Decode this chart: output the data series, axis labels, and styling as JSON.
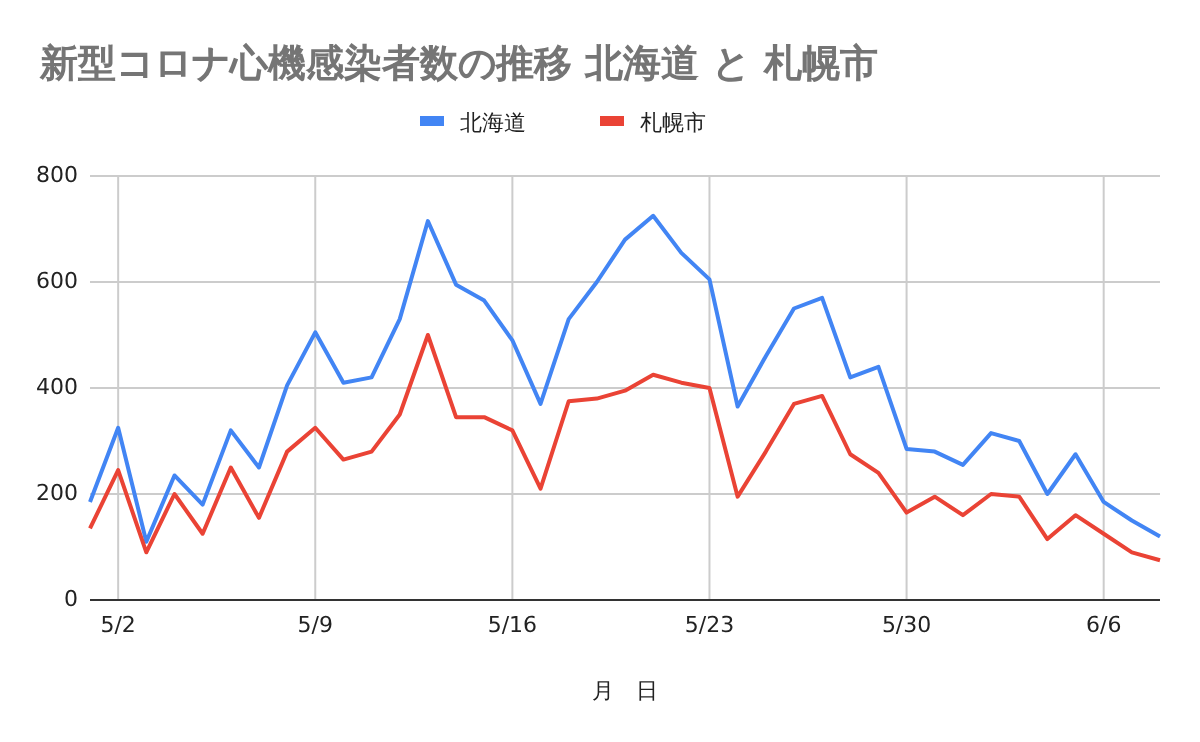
{
  "chart_data": {
    "type": "line",
    "title": "新型コロナ心機感染者数の推移 北海道 と 札幌市",
    "xlabel": "月　日",
    "categories": [
      null,
      "5/2",
      null,
      null,
      null,
      null,
      null,
      null,
      "5/9",
      null,
      null,
      null,
      null,
      null,
      null,
      "5/16",
      null,
      null,
      null,
      null,
      null,
      null,
      "5/23",
      null,
      null,
      null,
      null,
      null,
      null,
      "5/30",
      null,
      null,
      null,
      null,
      null,
      null,
      "6/6",
      null,
      null
    ],
    "series": [
      {
        "name": "北海道",
        "color": "#4285f4",
        "values": [
          185,
          325,
          110,
          235,
          180,
          320,
          250,
          405,
          505,
          410,
          420,
          530,
          715,
          595,
          565,
          490,
          370,
          530,
          600,
          680,
          725,
          655,
          605,
          365,
          460,
          550,
          570,
          420,
          440,
          285,
          280,
          255,
          315,
          300,
          200,
          275,
          185,
          150,
          120
        ]
      },
      {
        "name": "札幌市",
        "color": "#ea4335",
        "values": [
          135,
          245,
          90,
          200,
          125,
          250,
          155,
          280,
          325,
          265,
          280,
          350,
          500,
          345,
          345,
          320,
          210,
          375,
          380,
          395,
          425,
          410,
          400,
          195,
          280,
          370,
          385,
          275,
          240,
          165,
          195,
          160,
          200,
          195,
          115,
          160,
          125,
          90,
          75
        ]
      }
    ],
    "ylim": [
      0,
      800
    ],
    "yticks": [
      0,
      200,
      400,
      600,
      800
    ],
    "grid": true,
    "legend": "top",
    "marker": "none",
    "line_style": "solid"
  }
}
